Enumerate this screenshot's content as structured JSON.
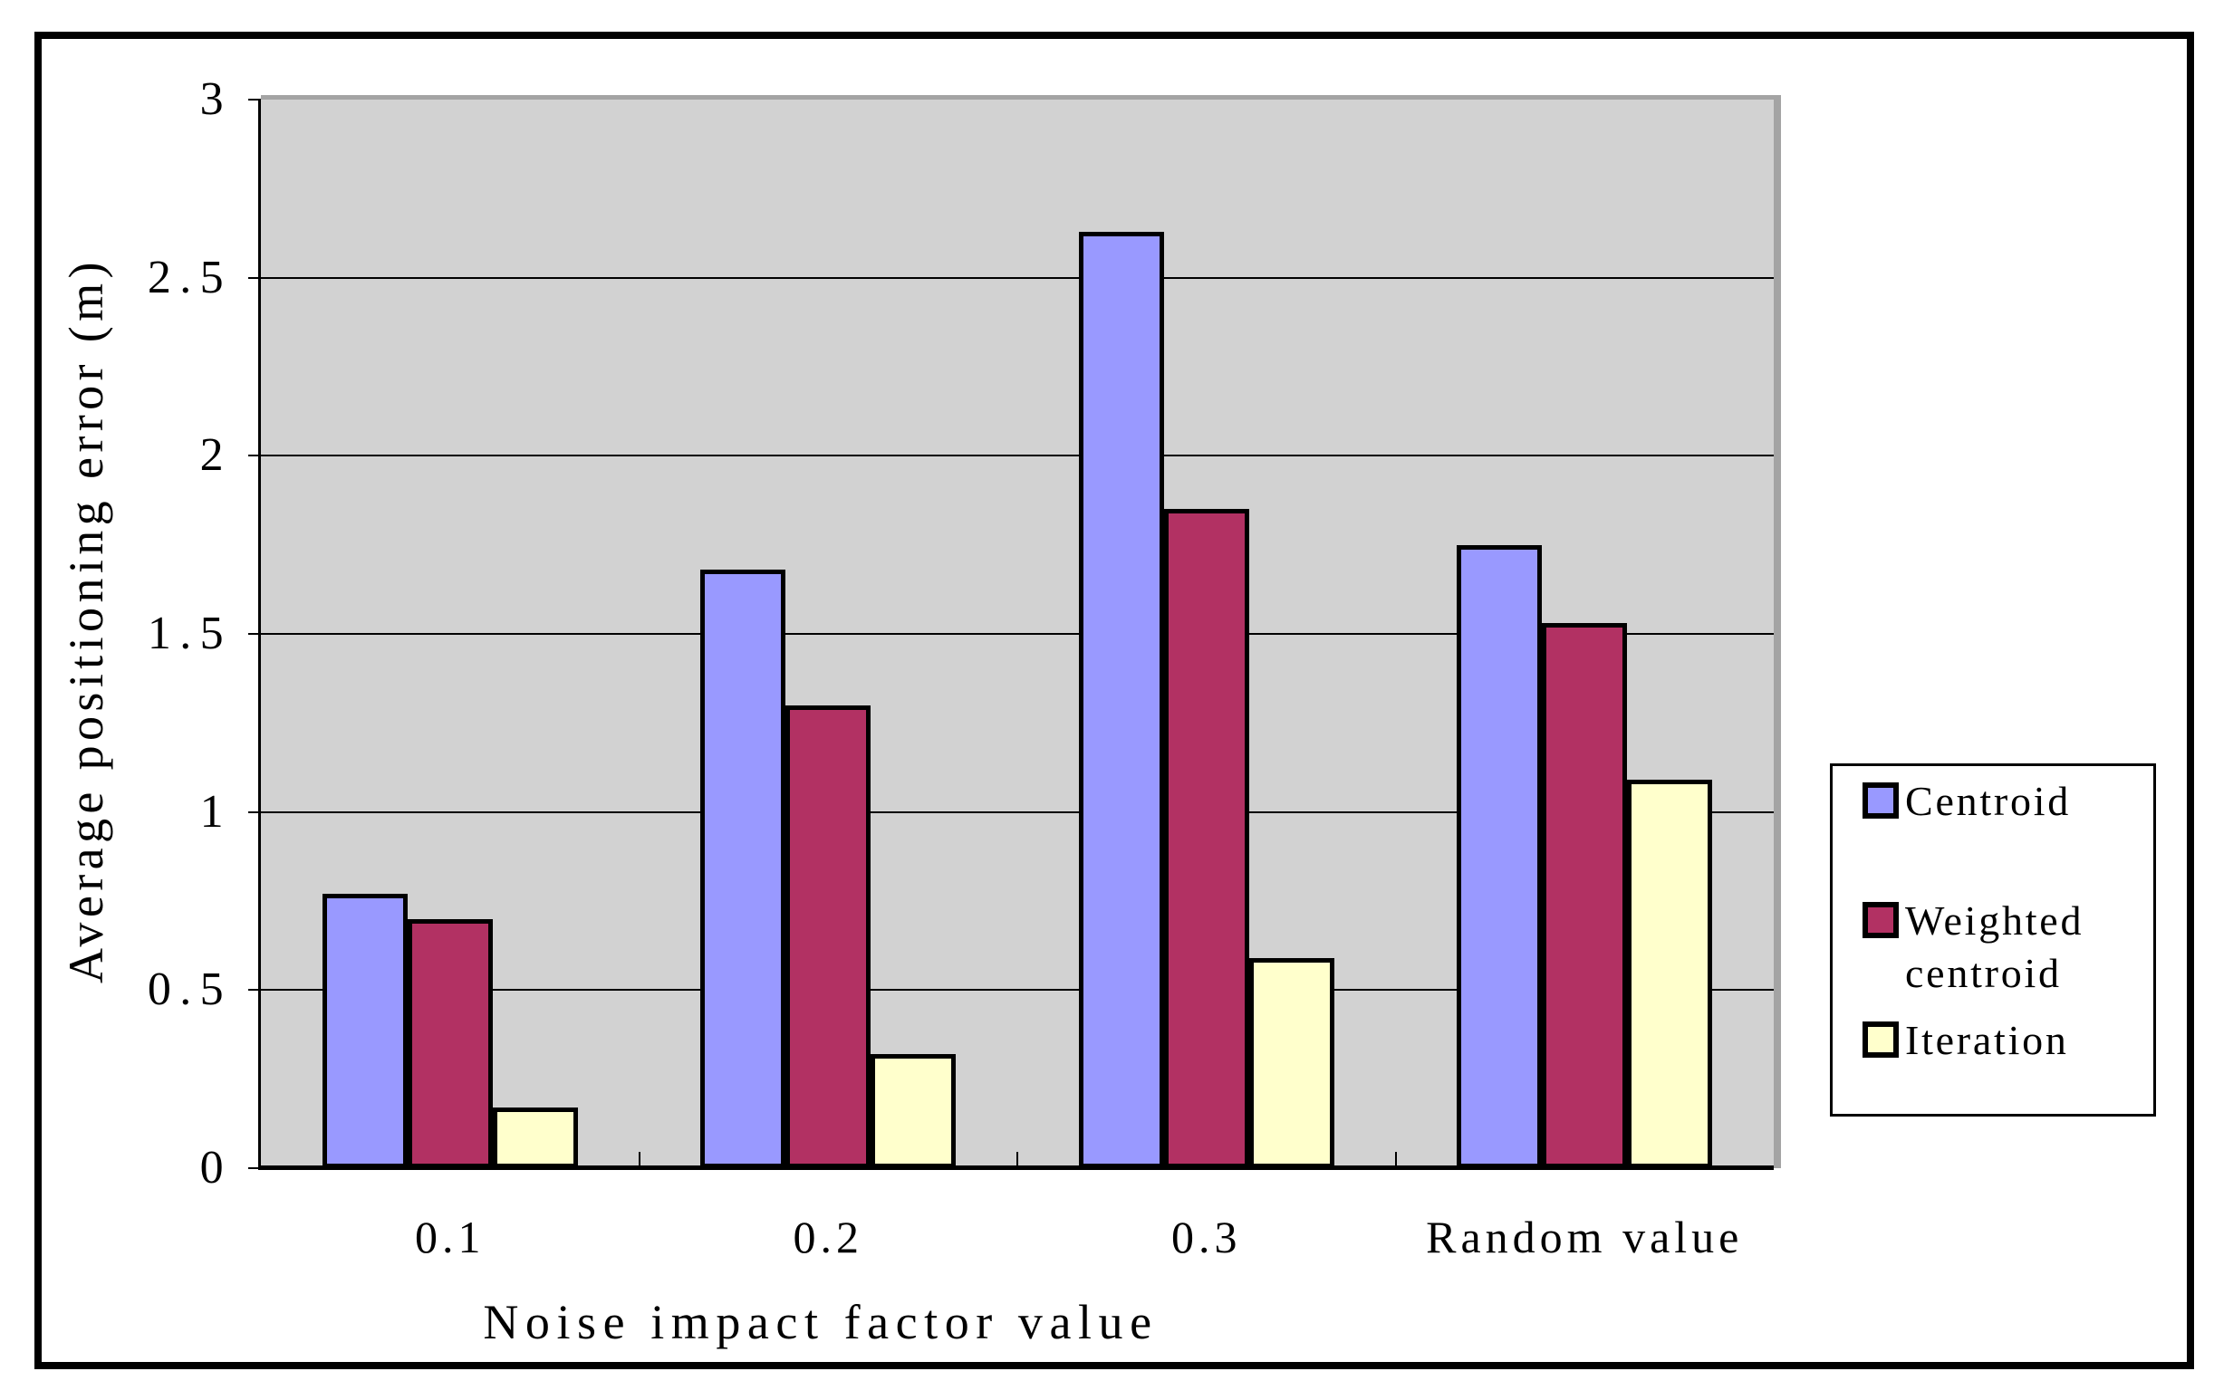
{
  "figure": {
    "y_axis_title": "Average positioning error (m)",
    "x_axis_title": "Noise impact factor value"
  },
  "chart_data": {
    "type": "bar",
    "categories": [
      "0.1",
      "0.2",
      "0.3",
      "Random value"
    ],
    "series": [
      {
        "name": "Centroid",
        "color": "#9999FF",
        "values": [
          0.77,
          1.68,
          2.63,
          1.75
        ]
      },
      {
        "name": "Weighted centroid",
        "color": "#B23163",
        "values": [
          0.7,
          1.3,
          1.85,
          1.53
        ]
      },
      {
        "name": "Iteration",
        "color": "#FFFFCC",
        "values": [
          0.17,
          0.32,
          0.59,
          1.09
        ]
      }
    ],
    "title": "",
    "xlabel": "Noise impact factor value",
    "ylabel": "Average positioning error (m)",
    "ylim": [
      0,
      3
    ],
    "ytick_step": 0.5,
    "ytick_labels": [
      "3",
      "2.5",
      "2",
      "1.5",
      "1",
      "0.5",
      "0"
    ],
    "grid": true,
    "plot_bg": "#D2D2D2",
    "legend_position": "right"
  },
  "legend": {
    "items": [
      {
        "label": "Centroid",
        "color": "#9999FF"
      },
      {
        "label": "Weighted\ncentroid",
        "color": "#B23163"
      },
      {
        "label": "Iteration",
        "color": "#FFFFCC"
      }
    ]
  }
}
